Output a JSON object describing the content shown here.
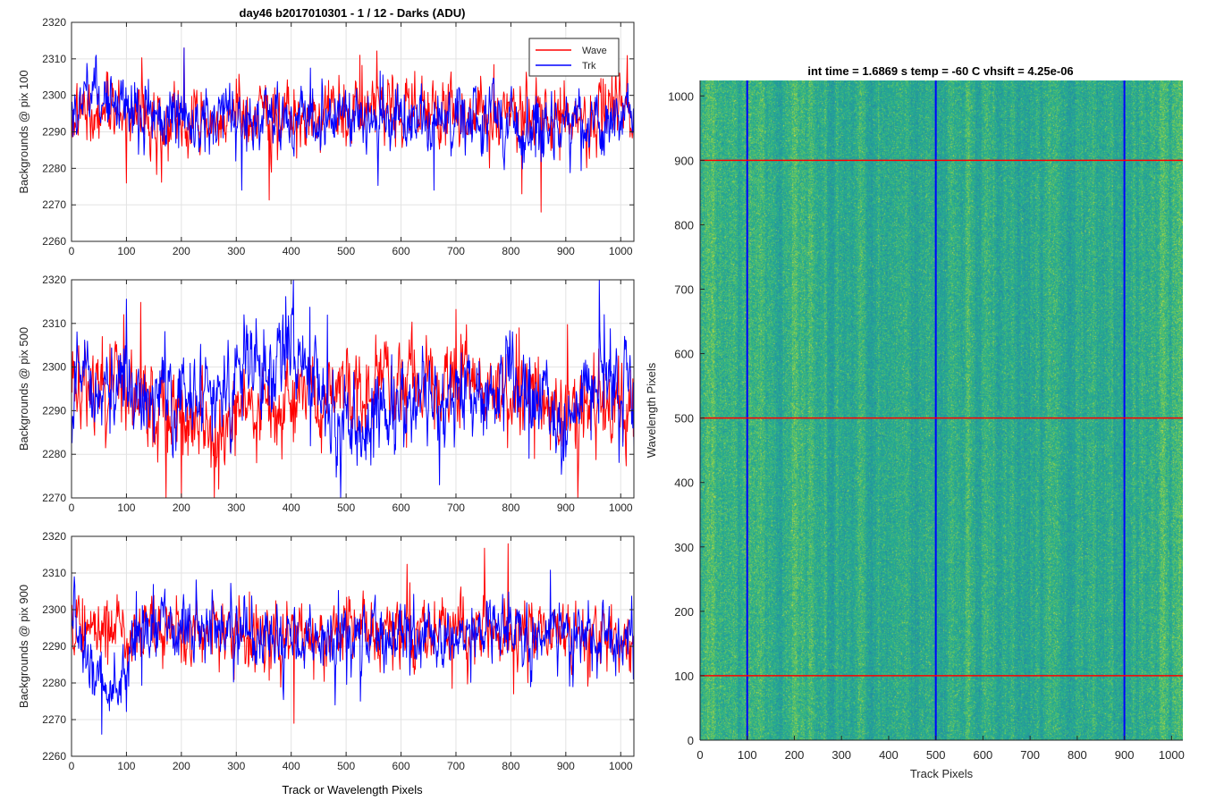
{
  "figure": {
    "title": "day46 b2017010301 - 1 / 12 - Darks (ADU)",
    "shared_xlabel": "Track or Wavelength Pixels"
  },
  "colors": {
    "wave": "#ff0000",
    "trk": "#0000ff",
    "heatmap_low": "#2a9d9d",
    "heatmap_mid": "#34b38a",
    "heatmap_high": "#c8d23c"
  },
  "chart_data": [
    {
      "type": "line",
      "ylabel": "Backgrounds @ pix 100",
      "xlim": [
        0,
        1024
      ],
      "ylim": [
        2260,
        2320
      ],
      "xticks": [
        0,
        100,
        200,
        300,
        400,
        500,
        600,
        700,
        800,
        900,
        1000
      ],
      "yticks": [
        2260,
        2270,
        2280,
        2290,
        2300,
        2310,
        2320
      ],
      "grid": true,
      "legend": {
        "placement": "top-right",
        "entries": [
          "Wave",
          "Trk"
        ]
      },
      "series": [
        {
          "name": "Wave",
          "color": "#ff0000",
          "mean": 2294,
          "sd": 4.5,
          "drift": [
            [
              0,
              2294
            ],
            [
              200,
              2293
            ],
            [
              400,
              2295
            ],
            [
              600,
              2296
            ],
            [
              800,
              2294
            ],
            [
              1024,
              2294
            ]
          ],
          "spikes": [
            [
              205,
              2313
            ],
            [
              855,
              2268
            ],
            [
              820,
              2273
            ],
            [
              100,
              2276
            ],
            [
              525,
              2311
            ]
          ]
        },
        {
          "name": "Trk",
          "color": "#0000ff",
          "mean": 2294,
          "sd": 4.5,
          "drift": [
            [
              0,
              2294
            ],
            [
              40,
              2300
            ],
            [
              150,
              2294
            ],
            [
              400,
              2293
            ],
            [
              700,
              2292
            ],
            [
              900,
              2291
            ],
            [
              1024,
              2296
            ]
          ],
          "spikes": [
            [
              205,
              2313
            ],
            [
              45,
              2311
            ],
            [
              310,
              2274
            ],
            [
              660,
              2274
            ]
          ]
        }
      ]
    },
    {
      "type": "line",
      "ylabel": "Backgrounds @ pix 500",
      "xlim": [
        0,
        1024
      ],
      "ylim": [
        2270,
        2320
      ],
      "xticks": [
        0,
        100,
        200,
        300,
        400,
        500,
        600,
        700,
        800,
        900,
        1000
      ],
      "yticks": [
        2270,
        2280,
        2290,
        2300,
        2310,
        2320
      ],
      "grid": true,
      "series": [
        {
          "name": "Wave",
          "color": "#ff0000",
          "mean": 2293,
          "sd": 5,
          "drift": [
            [
              0,
              2295
            ],
            [
              100,
              2294
            ],
            [
              200,
              2289
            ],
            [
              260,
              2288
            ],
            [
              320,
              2291
            ],
            [
              420,
              2294
            ],
            [
              500,
              2295
            ],
            [
              600,
              2296
            ],
            [
              700,
              2298
            ],
            [
              800,
              2294
            ],
            [
              900,
              2290
            ],
            [
              1024,
              2292
            ]
          ],
          "spikes": [
            [
              95,
              2312
            ],
            [
              200,
              2270
            ],
            [
              260,
              2270
            ],
            [
              815,
              2309
            ]
          ]
        },
        {
          "name": "Trk",
          "color": "#0000ff",
          "mean": 2294,
          "sd": 5,
          "drift": [
            [
              0,
              2296
            ],
            [
              100,
              2296
            ],
            [
              150,
              2292
            ],
            [
              250,
              2296
            ],
            [
              330,
              2298
            ],
            [
              400,
              2304
            ],
            [
              450,
              2296
            ],
            [
              490,
              2283
            ],
            [
              560,
              2289
            ],
            [
              700,
              2294
            ],
            [
              800,
              2296
            ],
            [
              900,
              2287
            ],
            [
              960,
              2298
            ],
            [
              1024,
              2293
            ]
          ],
          "spikes": [
            [
              400,
              2312
            ],
            [
              490,
              2270
            ],
            [
              970,
              2312
            ],
            [
              670,
              2273
            ]
          ]
        }
      ]
    },
    {
      "type": "line",
      "ylabel": "Backgrounds @ pix 900",
      "xlim": [
        0,
        1024
      ],
      "ylim": [
        2260,
        2320
      ],
      "xticks": [
        0,
        100,
        200,
        300,
        400,
        500,
        600,
        700,
        800,
        900,
        1000
      ],
      "yticks": [
        2260,
        2270,
        2280,
        2290,
        2300,
        2310,
        2320
      ],
      "grid": true,
      "xlabel": "Track or Wavelength Pixels",
      "series": [
        {
          "name": "Wave",
          "color": "#ff0000",
          "mean": 2294,
          "sd": 4.5,
          "drift": [
            [
              0,
              2296
            ],
            [
              100,
              2293
            ],
            [
              300,
              2294
            ],
            [
              500,
              2294
            ],
            [
              700,
              2294
            ],
            [
              900,
              2293
            ],
            [
              1024,
              2292
            ]
          ],
          "spikes": [
            [
              405,
              2269
            ],
            [
              795,
              2318
            ],
            [
              805,
              2277
            ],
            [
              20,
              2303
            ]
          ]
        },
        {
          "name": "Trk",
          "color": "#0000ff",
          "mean": 2292,
          "sd": 4.5,
          "drift": [
            [
              0,
              2300
            ],
            [
              30,
              2285
            ],
            [
              60,
              2278
            ],
            [
              90,
              2283
            ],
            [
              130,
              2294
            ],
            [
              250,
              2295
            ],
            [
              400,
              2293
            ],
            [
              500,
              2292
            ],
            [
              700,
              2294
            ],
            [
              1024,
              2292
            ]
          ],
          "spikes": [
            [
              55,
              2266
            ],
            [
              5,
              2309
            ],
            [
              480,
              2274
            ]
          ]
        }
      ]
    },
    {
      "type": "heatmap",
      "title": "int time = 1.6869 s    temp = -60 C    vhsift = 4.25e-06",
      "xlabel": "Track Pixels",
      "ylabel": "Wavelength Pixels",
      "xlim": [
        0,
        1024
      ],
      "ylim": [
        0,
        1024
      ],
      "xticks": [
        0,
        100,
        200,
        300,
        400,
        500,
        600,
        700,
        800,
        900,
        1000
      ],
      "yticks": [
        0,
        100,
        200,
        300,
        400,
        500,
        600,
        700,
        800,
        900,
        1000
      ],
      "grid": false,
      "overlay_lines": [
        {
          "orientation": "vertical",
          "x": 100,
          "color": "#0000ff"
        },
        {
          "orientation": "vertical",
          "x": 500,
          "color": "#0000ff"
        },
        {
          "orientation": "vertical",
          "x": 900,
          "color": "#0000ff"
        },
        {
          "orientation": "horizontal",
          "y": 100,
          "color": "#ff0000"
        },
        {
          "orientation": "horizontal",
          "y": 500,
          "color": "#ff0000"
        },
        {
          "orientation": "horizontal",
          "y": 900,
          "color": "#ff0000"
        }
      ]
    }
  ]
}
